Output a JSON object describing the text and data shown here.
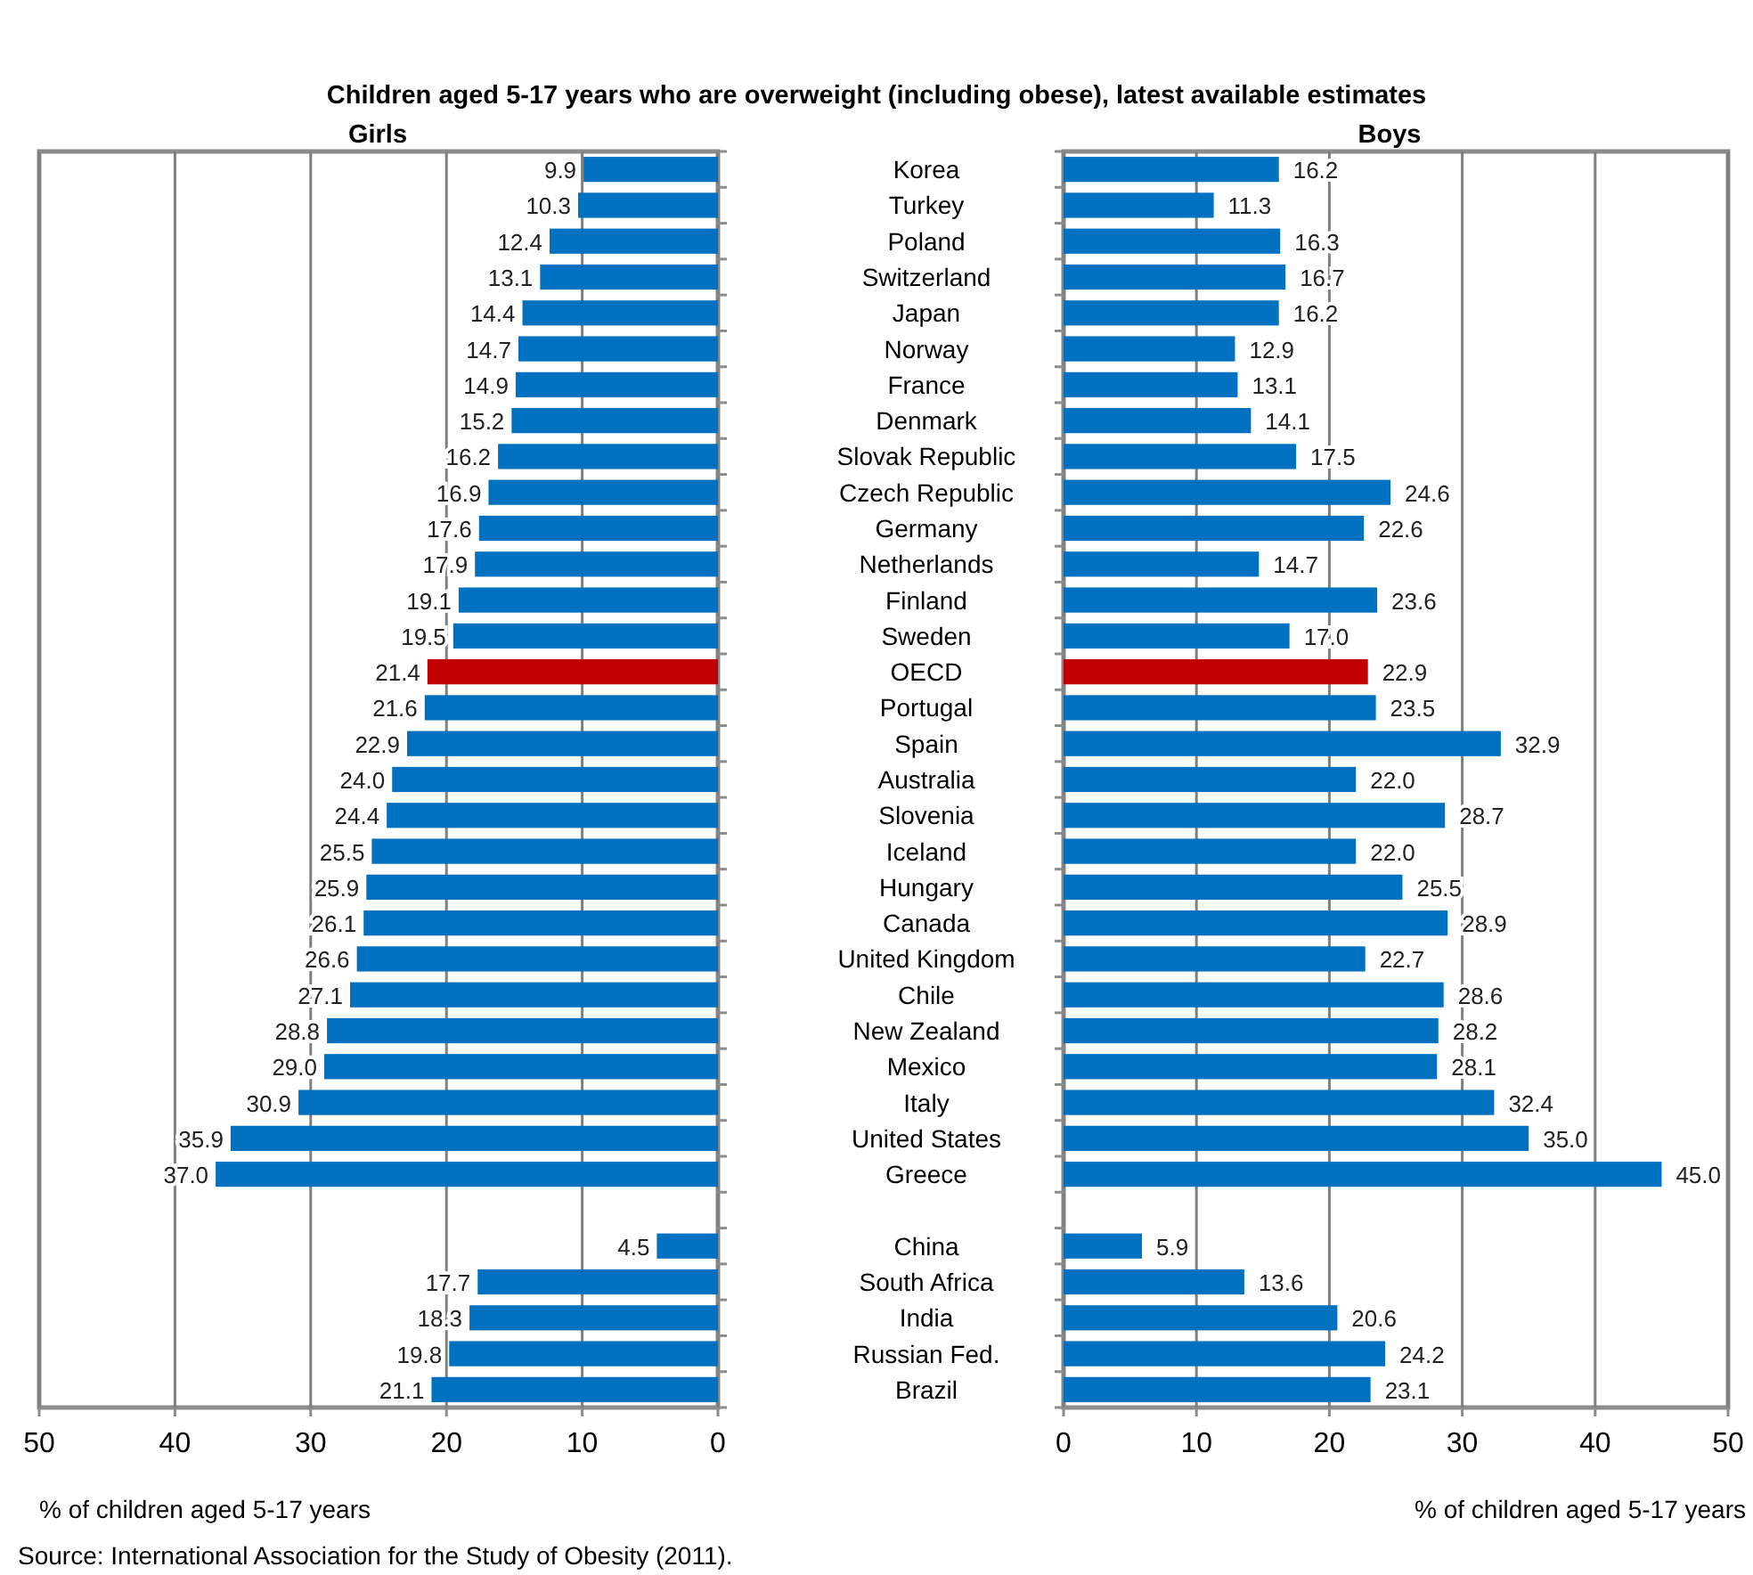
{
  "chart_data": [
    {
      "type": "bar",
      "orientation": "horizontal",
      "title": "Children aged 5-17 years who are overweight (including obese), latest available estimates",
      "subtitle": "Girls",
      "categories": [
        null,
        null,
        null,
        null,
        null,
        null,
        null,
        null,
        null,
        null,
        null,
        null,
        null,
        null,
        null,
        null,
        null,
        null,
        null,
        null,
        null,
        null,
        null,
        null,
        null,
        null,
        null,
        null,
        null,
        null,
        null,
        null,
        null,
        null,
        null
      ],
      "values": [
        9.9,
        10.3,
        12.4,
        13.1,
        14.4,
        14.7,
        14.9,
        15.2,
        16.2,
        16.9,
        17.6,
        17.9,
        19.1,
        19.5,
        21.4,
        21.6,
        22.9,
        24.0,
        24.4,
        25.5,
        25.9,
        26.1,
        26.6,
        27.1,
        28.8,
        29.0,
        30.9,
        35.9,
        37.0,
        null,
        4.5,
        17.7,
        18.3,
        19.8,
        21.1
      ],
      "colors": [
        "#0070c0",
        "#0070c0",
        "#0070c0",
        "#0070c0",
        "#0070c0",
        "#0070c0",
        "#0070c0",
        "#0070c0",
        "#0070c0",
        "#0070c0",
        "#0070c0",
        "#0070c0",
        "#0070c0",
        "#0070c0",
        "#c00000",
        "#0070c0",
        "#0070c0",
        "#0070c0",
        "#0070c0",
        "#0070c0",
        "#0070c0",
        "#0070c0",
        "#0070c0",
        "#0070c0",
        "#0070c0",
        "#0070c0",
        "#0070c0",
        "#0070c0",
        "#0070c0",
        null,
        "#0070c0",
        "#0070c0",
        "#0070c0",
        "#0070c0",
        "#0070c0"
      ],
      "value_labels": [
        "9.9",
        "10.3",
        "12.4",
        "13.1",
        "14.4",
        "14.7",
        "14.9",
        "15.2",
        "16.2",
        "16.9",
        "17.6",
        "17.9",
        "19.1",
        "19.5",
        "21.4",
        "21.6",
        "22.9",
        "24.0",
        "24.4",
        "25.5",
        "25.9",
        "26.1",
        "26.6",
        "27.1",
        "28.8",
        "29.0",
        "30.9",
        "35.9",
        "37.0",
        null,
        "4.5",
        "17.7",
        "18.3",
        "19.8",
        "21.1"
      ],
      "xlim": [
        50,
        0
      ],
      "xticks": [
        50,
        40,
        30,
        20,
        10,
        0
      ],
      "xlabel": "% of children aged 5-17 years",
      "grid": "x",
      "tick_labels": "x",
      "annotations": [
        "Source: International Association for the Study of Obesity (2011)."
      ]
    },
    {
      "type": "bar",
      "orientation": "horizontal",
      "title": "Boys",
      "categories": [
        "Korea",
        "Turkey",
        "Poland",
        "Switzerland",
        "Japan",
        "Norway",
        "France",
        "Denmark",
        "Slovak Republic",
        "Czech Republic",
        "Germany",
        "Netherlands",
        "Finland",
        "Sweden",
        "OECD",
        "Portugal",
        "Spain",
        "Australia",
        "Slovenia",
        "Iceland",
        "Hungary",
        "Canada",
        "United Kingdom",
        "Chile",
        "New Zealand",
        "Mexico",
        "Italy",
        "United States",
        "Greece",
        null,
        "China",
        "South Africa",
        "India",
        "Russian Fed.",
        "Brazil"
      ],
      "values": [
        16.2,
        11.3,
        16.3,
        16.7,
        16.2,
        12.9,
        13.1,
        14.1,
        17.5,
        24.6,
        22.6,
        14.7,
        23.6,
        17.0,
        22.9,
        23.5,
        32.9,
        22.0,
        28.7,
        22.0,
        25.5,
        28.9,
        22.7,
        28.6,
        28.2,
        28.1,
        32.4,
        35.0,
        45.0,
        null,
        5.9,
        13.6,
        20.6,
        24.2,
        23.1
      ],
      "value_labels": [
        "16.2",
        "11.3",
        "16.3",
        "16.7",
        "16.2",
        "12.9",
        "13.1",
        "14.1",
        "17.5",
        "24.6",
        "22.6",
        "14.7",
        "23.6",
        "17.0",
        "22.9",
        "23.5",
        "32.9",
        "22.0",
        "28.7",
        "22.0",
        "25.5",
        "28.9",
        "22.7",
        "28.6",
        "28.2",
        "28.1",
        "32.4",
        "35.0",
        "45.0",
        null,
        "5.9",
        "13.6",
        "20.6",
        "24.2",
        "23.1"
      ],
      "colors": [
        "#0070c0",
        "#0070c0",
        "#0070c0",
        "#0070c0",
        "#0070c0",
        "#0070c0",
        "#0070c0",
        "#0070c0",
        "#0070c0",
        "#0070c0",
        "#0070c0",
        "#0070c0",
        "#0070c0",
        "#0070c0",
        "#c00000",
        "#0070c0",
        "#0070c0",
        "#0070c0",
        "#0070c0",
        "#0070c0",
        "#0070c0",
        "#0070c0",
        "#0070c0",
        "#0070c0",
        "#0070c0",
        "#0070c0",
        "#0070c0",
        "#0070c0",
        "#0070c0",
        null,
        "#0070c0",
        "#0070c0",
        "#0070c0",
        "#0070c0",
        "#0070c0"
      ],
      "xlim": [
        0,
        50
      ],
      "xticks": [
        0,
        10,
        20,
        30,
        40,
        50
      ],
      "xlabel": "% of children aged 5-17 years",
      "grid": "x"
    }
  ]
}
